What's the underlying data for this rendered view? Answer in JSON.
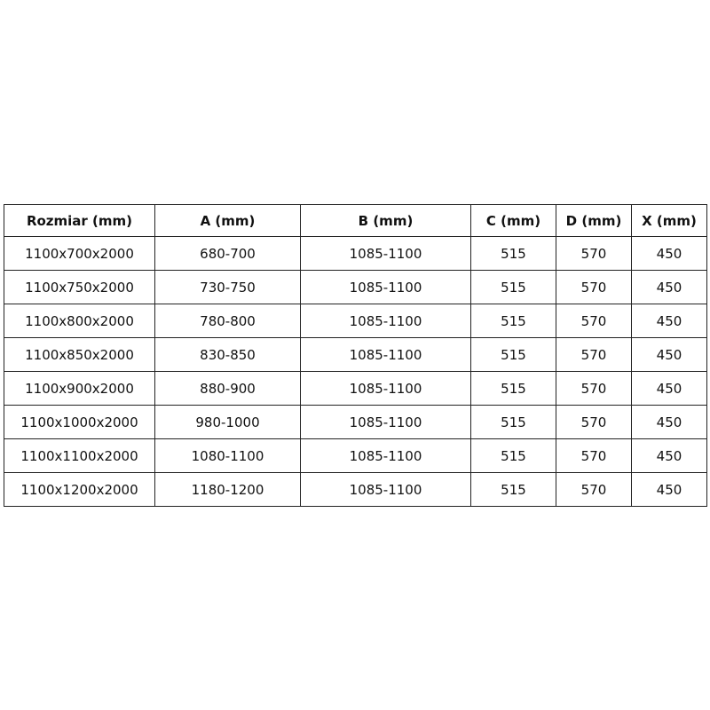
{
  "table": {
    "header": [
      "Rozmiar (mm)",
      "A (mm)",
      "B (mm)",
      "C (mm)",
      "D (mm)",
      "X (mm)"
    ],
    "rows": [
      [
        "1100x700x2000",
        "680-700",
        "1085-1100",
        "515",
        "570",
        "450"
      ],
      [
        "1100x750x2000",
        "730-750",
        "1085-1100",
        "515",
        "570",
        "450"
      ],
      [
        "1100x800x2000",
        "780-800",
        "1085-1100",
        "515",
        "570",
        "450"
      ],
      [
        "1100x850x2000",
        "830-850",
        "1085-1100",
        "515",
        "570",
        "450"
      ],
      [
        "1100x900x2000",
        "880-900",
        "1085-1100",
        "515",
        "570",
        "450"
      ],
      [
        "1100x1000x2000",
        "980-1000",
        "1085-1100",
        "515",
        "570",
        "450"
      ],
      [
        "1100x1100x2000",
        "1080-1100",
        "1085-1100",
        "515",
        "570",
        "450"
      ],
      [
        "1100x1200x2000",
        "1180-1200",
        "1085-1100",
        "515",
        "570",
        "450"
      ]
    ]
  }
}
